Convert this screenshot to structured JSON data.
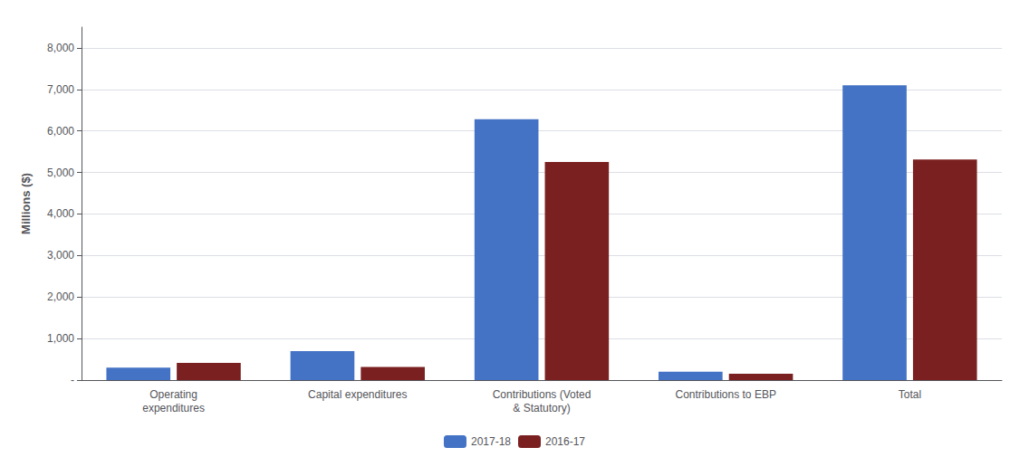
{
  "chart_data": {
    "type": "bar",
    "categories": [
      "Operating\nexpenditures",
      "Capital expenditures",
      "Contributions (Voted\n& Statutory)",
      "Contributions to EBP",
      "Total"
    ],
    "series": [
      {
        "name": "2017-18",
        "color": "#4472C4",
        "values": [
          300,
          700,
          6280,
          200,
          7100
        ]
      },
      {
        "name": "2016-17",
        "color": "#7B2020",
        "values": [
          415,
          315,
          5250,
          150,
          5310
        ]
      }
    ],
    "ylabel": "Millions ($)",
    "ylim": [
      0,
      8500
    ],
    "yticks": [
      {
        "value": 0,
        "label": "-"
      },
      {
        "value": 1000,
        "label": "1,000"
      },
      {
        "value": 2000,
        "label": "2,000"
      },
      {
        "value": 3000,
        "label": "3,000"
      },
      {
        "value": 4000,
        "label": "4,000"
      },
      {
        "value": 5000,
        "label": "5,000"
      },
      {
        "value": 6000,
        "label": "6,000"
      },
      {
        "value": 7000,
        "label": "7,000"
      },
      {
        "value": 8000,
        "label": "8,000"
      }
    ],
    "grid": true,
    "legend": "bottom"
  }
}
